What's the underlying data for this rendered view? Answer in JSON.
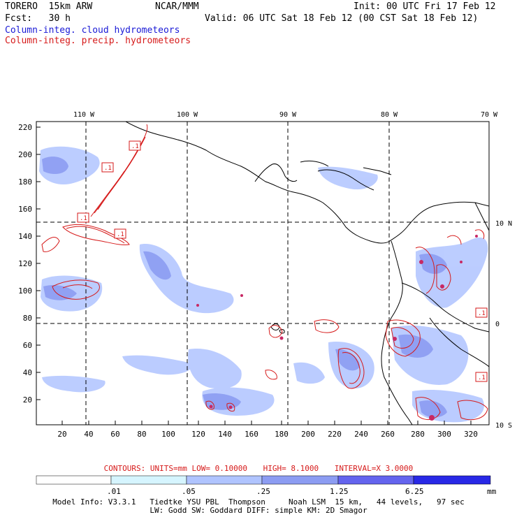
{
  "header": {
    "model": "TORERO  15km ARW",
    "center": "NCAR/MMM",
    "init": "Init: 00 UTC Fri 17 Feb 12",
    "fcst": "Fcst:   30 h",
    "valid": "Valid: 06 UTC Sat 18 Feb 12 (00 CST Sat 18 Feb 12)",
    "field1": "Column-integ. cloud hydrometeors",
    "field2": "Column-integ. precip. hydrometeors"
  },
  "map": {
    "lon_labels": [
      "110 W",
      "100 W",
      "90 W",
      "80 W",
      "70 W"
    ],
    "lat_labels": [
      "10 N",
      "0",
      "10 S"
    ],
    "y_ticks": [
      "220",
      "200",
      "180",
      "160",
      "140",
      "120",
      "100",
      "80",
      "60",
      "40",
      "20"
    ],
    "x_ticks": [
      "20",
      "40",
      "60",
      "80",
      "100",
      "120",
      "140",
      "160",
      "180",
      "200",
      "220",
      "240",
      "260",
      "280",
      "300",
      "320"
    ],
    "contour_labels": [
      ".1",
      ".1",
      ".1",
      ".1",
      ".1",
      ".1"
    ]
  },
  "contours_line": {
    "units": "CONTOURS:  UNITS=mm  LOW= 0.10000",
    "high": "HIGH=  8.1000",
    "interval": "INTERVAL=X  3.0000"
  },
  "colorbar": {
    "labels": [
      ".01",
      ".05",
      ".25",
      "1.25",
      "6.25"
    ],
    "unit": "mm",
    "colors": [
      "#ffffff",
      "#d6f5ff",
      "#b0c4ff",
      "#8c9cf2",
      "#6464ee",
      "#2828e6"
    ]
  },
  "footer": {
    "line1": "Model Info: V3.3.1   Tiedtke YSU PBL  Thompson     Noah LSM  15 km,   44 levels,   97 sec",
    "line2": "LW: Godd SW: Goddard DIFF: simple KM: 2D Smagor"
  }
}
